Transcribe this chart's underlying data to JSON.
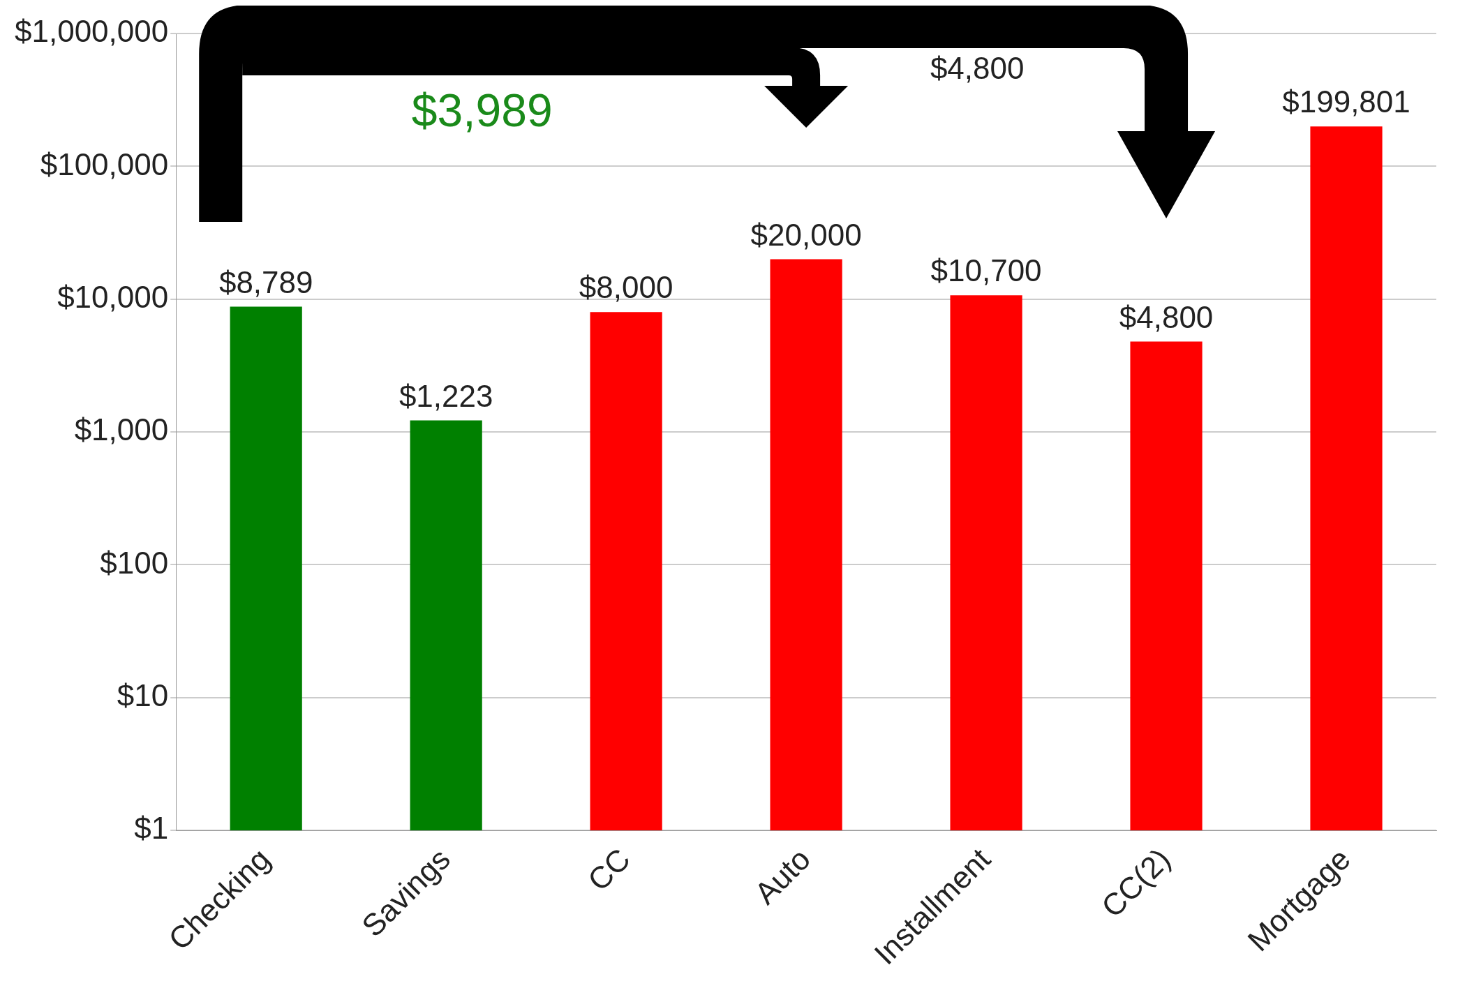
{
  "chart_data": {
    "type": "bar",
    "categories": [
      "Checking",
      "Savings",
      "CC",
      "Auto",
      "Installment",
      "CC(2)",
      "Mortgage"
    ],
    "values": [
      8789,
      1223,
      8000,
      20000,
      10700,
      4800,
      199801
    ],
    "colors": [
      "#008000",
      "#008000",
      "#ff0000",
      "#ff0000",
      "#ff0000",
      "#ff0000",
      "#ff0000"
    ],
    "value_labels": [
      "$8,789",
      "$1,223",
      "$8,000",
      "$20,000",
      "$10,700",
      "$4,800",
      "$199,801"
    ],
    "log": "y",
    "ylim": [
      1,
      1000000
    ],
    "yticks": [
      {
        "value": 1,
        "label": "$1"
      },
      {
        "value": 10,
        "label": "$10"
      },
      {
        "value": 100,
        "label": "$100"
      },
      {
        "value": 1000,
        "label": "$1,000"
      },
      {
        "value": 10000,
        "label": "$10,000"
      },
      {
        "value": 100000,
        "label": "$100,000"
      },
      {
        "value": 1000000,
        "label": "$1,000,000"
      }
    ],
    "grid": "y",
    "legend": false,
    "annotations": [
      "$3,989",
      "$4,800"
    ]
  }
}
